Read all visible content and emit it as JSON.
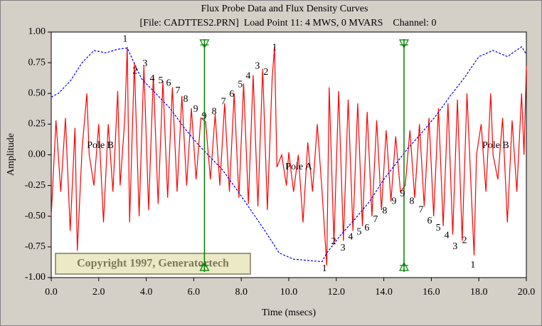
{
  "chart_data": {
    "type": "line",
    "title": "Flux Probe Data and Flux Density Curves",
    "subtitle": "[File: CADTTES2.PRN]  Load Point 11: 4 MWS, 0 MVARS    Channel: 0",
    "x_label": "Time (msecs)",
    "y_label": "Amplitude",
    "xlim": [
      0,
      20
    ],
    "ylim": [
      -1,
      1
    ],
    "xticks": [
      {
        "value": 0,
        "label": "0.0"
      },
      {
        "value": 2,
        "label": "2.0"
      },
      {
        "value": 4,
        "label": "4.0"
      },
      {
        "value": 6,
        "label": "6.0"
      },
      {
        "value": 8,
        "label": "8.0"
      },
      {
        "value": 10,
        "label": "10.0"
      },
      {
        "value": 12,
        "label": "12.0"
      },
      {
        "value": 14,
        "label": "14.0"
      },
      {
        "value": 16,
        "label": "16.0"
      },
      {
        "value": 18,
        "label": "18.0"
      },
      {
        "value": 20,
        "label": "20.0"
      }
    ],
    "yticks": [
      {
        "value": 1,
        "label": "1.00"
      },
      {
        "value": 0.75,
        "label": "0.75"
      },
      {
        "value": 0.5,
        "label": "0.50"
      },
      {
        "value": 0.25,
        "label": "0.25"
      },
      {
        "value": 0,
        "label": "0.00"
      },
      {
        "value": -0.25,
        "label": "-0.25"
      },
      {
        "value": -0.5,
        "label": "-0.50"
      },
      {
        "value": -0.75,
        "label": "-0.75"
      },
      {
        "value": -1,
        "label": "-1.00"
      }
    ],
    "series": [
      {
        "color": "#ff0000",
        "dashed": false,
        "x": [
          0.0,
          0.2,
          0.4,
          0.6,
          0.8,
          1.0,
          1.1,
          1.3,
          1.5,
          1.6,
          1.8,
          2.0,
          2.2,
          2.4,
          2.6,
          2.8,
          2.9,
          3.1,
          3.2,
          3.3,
          3.5,
          3.7,
          3.9,
          4.1,
          4.3,
          4.5,
          4.7,
          4.9,
          5.1,
          5.3,
          5.5,
          5.7,
          5.9,
          6.1,
          6.3,
          6.5,
          6.7,
          6.9,
          7.1,
          7.3,
          7.5,
          7.7,
          7.9,
          8.1,
          8.3,
          8.5,
          8.7,
          8.9,
          9.1,
          9.3,
          9.4,
          9.5,
          9.7,
          9.9,
          10.0,
          10.2,
          10.4,
          10.6,
          10.8,
          11.0,
          11.2,
          11.4,
          11.6,
          11.7,
          11.9,
          12.1,
          12.3,
          12.5,
          12.7,
          12.9,
          13.1,
          13.3,
          13.5,
          13.7,
          13.9,
          14.1,
          14.3,
          14.5,
          14.7,
          14.9,
          15.1,
          15.3,
          15.5,
          15.7,
          15.9,
          16.1,
          16.3,
          16.5,
          16.7,
          16.9,
          17.1,
          17.3,
          17.5,
          17.8,
          17.9,
          18.1,
          18.3,
          18.5,
          18.6,
          18.8,
          19.0,
          19.2,
          19.4,
          19.6,
          19.8,
          19.9,
          20.0
        ],
        "values": [
          -0.5,
          0.28,
          -0.3,
          0.3,
          -0.62,
          0.22,
          -0.78,
          0.05,
          0.5,
          0.0,
          -0.25,
          0.25,
          -0.55,
          0.25,
          -0.3,
          0.52,
          -0.25,
          0.3,
          0.88,
          -0.55,
          0.75,
          -0.5,
          0.72,
          -0.45,
          0.65,
          -0.4,
          0.6,
          -0.35,
          0.55,
          -0.3,
          0.48,
          -0.25,
          0.38,
          -0.2,
          0.3,
          0.27,
          -0.2,
          0.33,
          -0.25,
          0.42,
          -0.3,
          0.5,
          -0.35,
          0.58,
          -0.4,
          0.65,
          -0.42,
          0.7,
          -0.45,
          0.62,
          0.88,
          -0.1,
          0.0,
          -0.25,
          0.02,
          -0.3,
          0.0,
          -0.55,
          0.1,
          -0.3,
          0.25,
          -0.3,
          -0.9,
          0.55,
          -0.72,
          0.52,
          -0.7,
          0.45,
          -0.62,
          0.42,
          -0.58,
          0.35,
          -0.5,
          0.28,
          -0.45,
          0.2,
          -0.38,
          0.15,
          -0.3,
          -0.25,
          0.2,
          -0.35,
          0.25,
          -0.42,
          0.3,
          -0.5,
          0.38,
          -0.58,
          0.42,
          -0.65,
          0.45,
          -0.7,
          0.5,
          -0.82,
          0.0,
          0.25,
          -0.3,
          0.5,
          0.0,
          -0.2,
          0.3,
          -0.55,
          0.28,
          -0.3,
          0.5,
          0.0,
          0.72
        ]
      },
      {
        "color": "#0000ff",
        "dashed": true,
        "x": [
          0,
          0.3,
          0.8,
          1.3,
          1.8,
          2.3,
          2.8,
          3.2,
          3.8,
          4.4,
          5.0,
          5.6,
          6.2,
          6.6,
          7.2,
          7.8,
          8.4,
          9.0,
          9.6,
          10.2,
          10.8,
          11.4,
          11.6,
          12.2,
          12.8,
          13.4,
          14.0,
          14.6,
          15.0,
          15.6,
          16.2,
          16.8,
          17.4,
          18.0,
          18.6,
          19.2,
          19.8,
          20.0
        ],
        "values": [
          0.47,
          0.5,
          0.6,
          0.75,
          0.85,
          0.83,
          0.86,
          0.87,
          0.62,
          0.5,
          0.38,
          0.22,
          0.08,
          0.0,
          -0.12,
          -0.28,
          -0.45,
          -0.62,
          -0.8,
          -0.85,
          -0.86,
          -0.87,
          -0.8,
          -0.65,
          -0.52,
          -0.38,
          -0.2,
          -0.05,
          0.05,
          0.18,
          0.32,
          0.48,
          0.63,
          0.8,
          0.85,
          0.8,
          0.88,
          0.82
        ]
      }
    ],
    "cursors": [
      6.45,
      14.85
    ],
    "cursor_color": "#008000",
    "annotations": [
      {
        "text": "1",
        "x": 3.11,
        "y": 0.94
      },
      {
        "text": "2",
        "x": 3.53,
        "y": 0.68
      },
      {
        "text": "3",
        "x": 3.95,
        "y": 0.74
      },
      {
        "text": "4",
        "x": 4.25,
        "y": 0.62
      },
      {
        "text": "5",
        "x": 4.61,
        "y": 0.6
      },
      {
        "text": "6",
        "x": 4.94,
        "y": 0.58
      },
      {
        "text": "7",
        "x": 5.33,
        "y": 0.52
      },
      {
        "text": "8",
        "x": 5.66,
        "y": 0.45
      },
      {
        "text": "9",
        "x": 6.08,
        "y": 0.37
      },
      {
        "text": "9",
        "x": 6.44,
        "y": 0.31
      },
      {
        "text": "8",
        "x": 6.86,
        "y": 0.35
      },
      {
        "text": "7",
        "x": 7.25,
        "y": 0.43
      },
      {
        "text": "6",
        "x": 7.6,
        "y": 0.49
      },
      {
        "text": "5",
        "x": 7.96,
        "y": 0.57
      },
      {
        "text": "4",
        "x": 8.29,
        "y": 0.64
      },
      {
        "text": "3",
        "x": 8.68,
        "y": 0.72
      },
      {
        "text": "2",
        "x": 9.04,
        "y": 0.67
      },
      {
        "text": "1",
        "x": 9.4,
        "y": 0.87
      },
      {
        "text": "1",
        "x": 11.5,
        "y": -0.93
      },
      {
        "text": "2",
        "x": 11.89,
        "y": -0.71
      },
      {
        "text": "3",
        "x": 12.28,
        "y": -0.76
      },
      {
        "text": "4",
        "x": 12.6,
        "y": -0.67
      },
      {
        "text": "5",
        "x": 12.96,
        "y": -0.63
      },
      {
        "text": "6",
        "x": 13.29,
        "y": -0.6
      },
      {
        "text": "7",
        "x": 13.65,
        "y": -0.53
      },
      {
        "text": "8",
        "x": 14.04,
        "y": -0.46
      },
      {
        "text": "9",
        "x": 14.43,
        "y": -0.38
      },
      {
        "text": "9",
        "x": 14.79,
        "y": -0.32
      },
      {
        "text": "8",
        "x": 15.18,
        "y": -0.38
      },
      {
        "text": "7",
        "x": 15.57,
        "y": -0.45
      },
      {
        "text": "6",
        "x": 15.93,
        "y": -0.54
      },
      {
        "text": "5",
        "x": 16.29,
        "y": -0.6
      },
      {
        "text": "4",
        "x": 16.65,
        "y": -0.66
      },
      {
        "text": "3",
        "x": 17.0,
        "y": -0.75
      },
      {
        "text": "2",
        "x": 17.4,
        "y": -0.7
      },
      {
        "text": "1",
        "x": 17.75,
        "y": -0.9
      },
      {
        "text": "Pole B",
        "x": 2.07,
        "y": 0.075
      },
      {
        "text": "Pole A",
        "x": 10.42,
        "y": -0.1
      },
      {
        "text": "Pole B",
        "x": 18.71,
        "y": 0.075
      }
    ],
    "copyright": "Copyright 1997, Generatortech"
  }
}
